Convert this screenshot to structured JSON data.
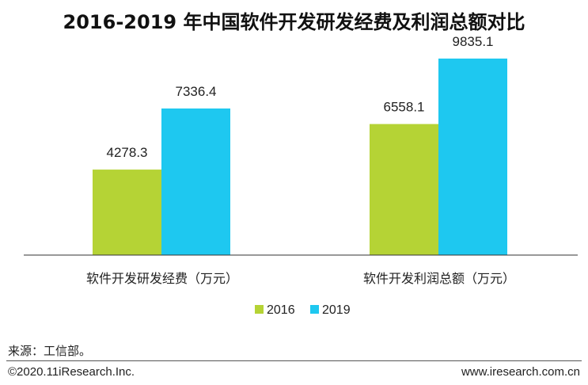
{
  "chart_data": {
    "type": "bar",
    "title": "2016-2019 年中国软件开发研发经费及利润总额对比",
    "categories": [
      "软件开发研发经费（万元）",
      "软件开发利润总额（万元）"
    ],
    "series": [
      {
        "name": "2016",
        "values": [
          4278.3,
          6558.1
        ],
        "color": "#b5d335"
      },
      {
        "name": "2019",
        "values": [
          7336.4,
          9835.1
        ],
        "color": "#1ec8f0"
      }
    ],
    "ylim": [
      0,
      11100
    ],
    "grid": false,
    "legend": "bottom-center",
    "xlabel": "",
    "ylabel": ""
  },
  "footer": {
    "source": "来源：工信部。",
    "copyright": "©2020.11iResearch.Inc.",
    "website": "www.iresearch.com.cn"
  }
}
